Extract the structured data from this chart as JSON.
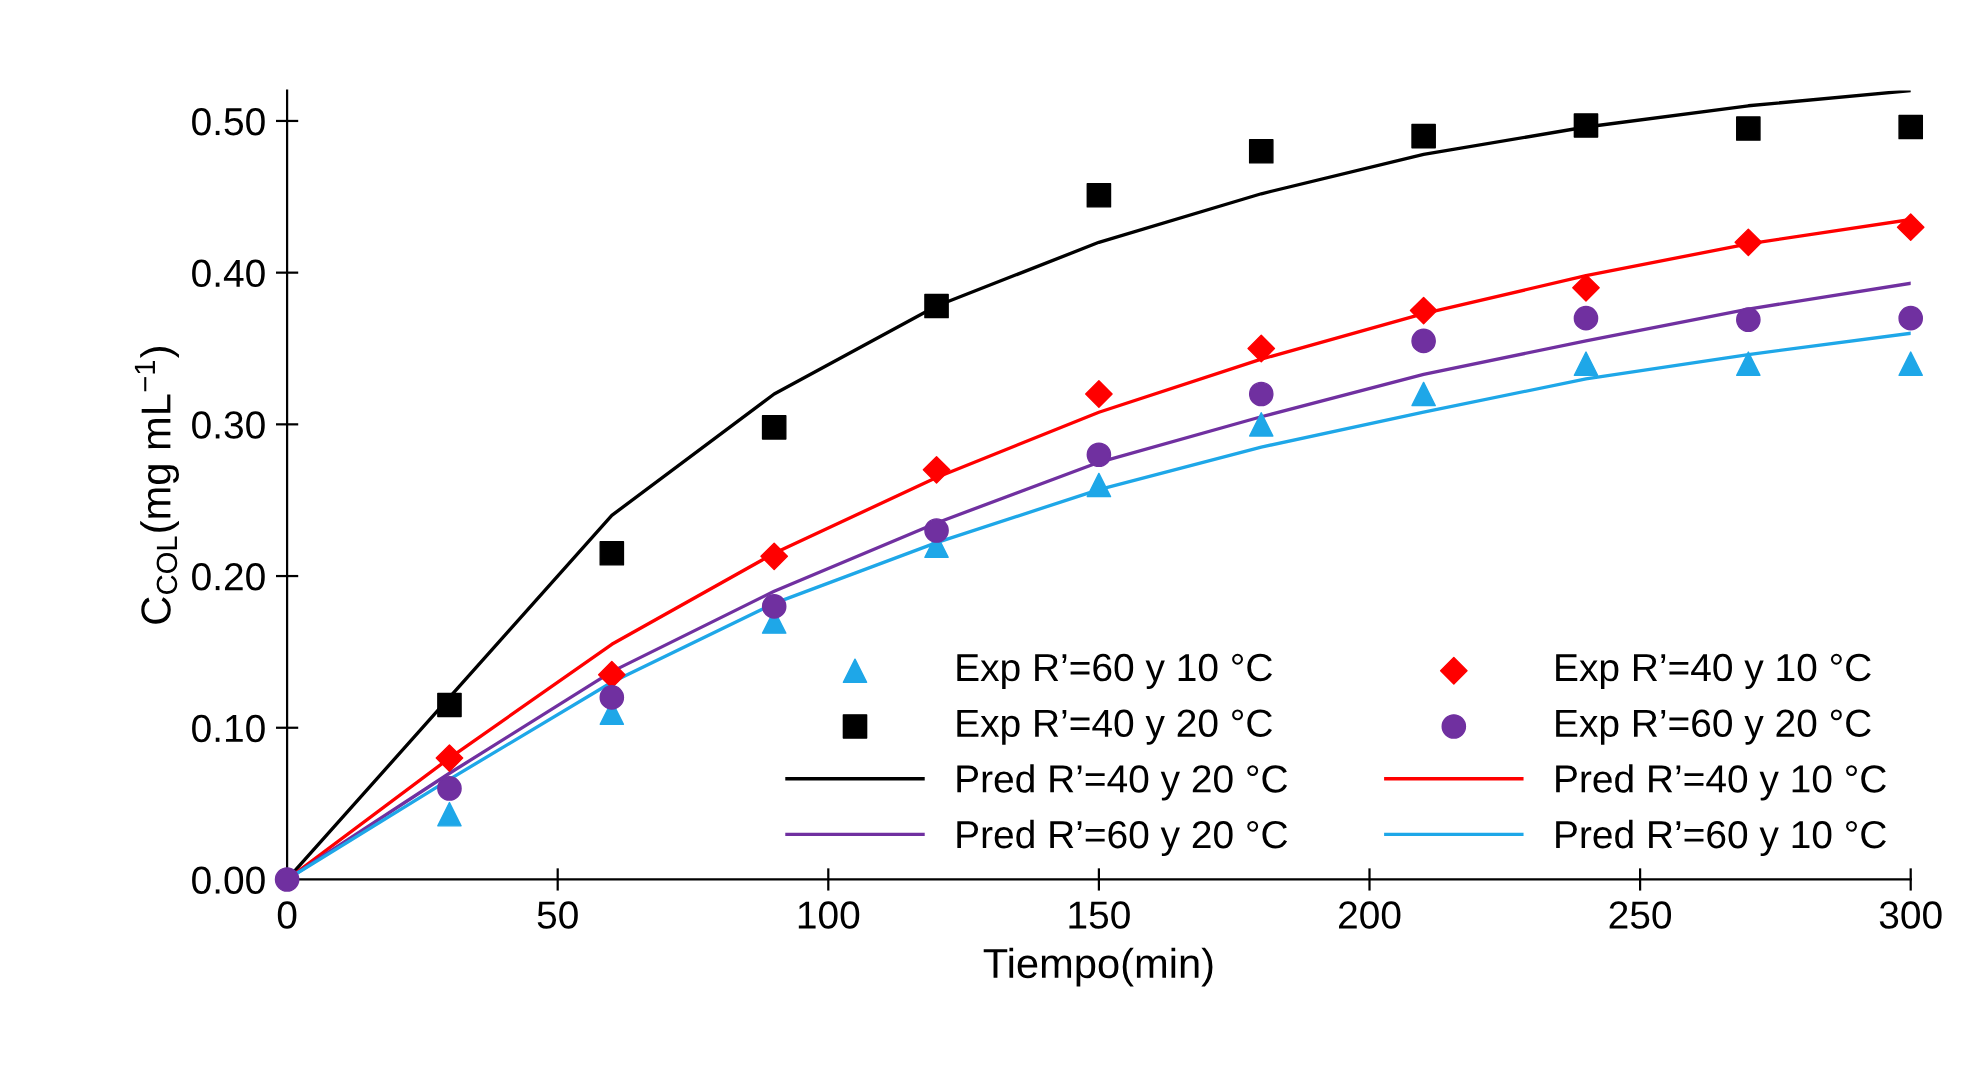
{
  "chart_data": {
    "type": "scatter",
    "xlabel": "Tiempo(min)",
    "ylabel": "C$_{COL}$(mg mL$^{−1}$)",
    "xlim": [
      0,
      300
    ],
    "ylim": [
      0,
      0.52
    ],
    "xticks": [
      0,
      50,
      100,
      150,
      200,
      250,
      300
    ],
    "yticks": [
      {
        "value": 0,
        "label": "0.00"
      },
      {
        "value": 0.1,
        "label": "0.10"
      },
      {
        "value": 0.2,
        "label": "0.20"
      },
      {
        "value": 0.3,
        "label": "0.30"
      },
      {
        "value": 0.4,
        "label": "0.40"
      },
      {
        "value": 0.5,
        "label": "0.50"
      }
    ],
    "grid": false,
    "legend": "bottom right",
    "x": [
      0,
      30,
      60,
      90,
      120,
      150,
      180,
      210,
      240,
      270,
      300
    ],
    "series": [
      {
        "name": "Exp R’=60 y 10 °C",
        "marker": "triangle",
        "color": "#1ea7e8",
        "values": [
          null,
          0.043,
          0.11,
          0.17,
          0.22,
          0.26,
          0.3,
          0.32,
          0.34,
          0.34,
          0.34
        ]
      },
      {
        "name": "Exp R’=40 y 10 °C",
        "marker": "diamond",
        "color": "#ff0000",
        "values": [
          null,
          0.08,
          0.135,
          0.213,
          0.27,
          0.32,
          0.35,
          0.375,
          0.39,
          0.42,
          0.43
        ]
      },
      {
        "name": "Exp R’=40 y 20 °C",
        "marker": "square",
        "color": "#000000",
        "values": [
          null,
          0.115,
          0.215,
          0.298,
          0.378,
          0.451,
          0.48,
          0.49,
          0.497,
          0.495,
          0.496
        ]
      },
      {
        "name": "Exp R’=60 y 20 °C",
        "marker": "circle",
        "color": "#7030a0",
        "values": [
          0,
          0.06,
          0.12,
          0.18,
          0.23,
          0.28,
          0.32,
          0.355,
          0.37,
          0.369,
          0.37
        ]
      },
      {
        "name": "Pred R’=40 y 20 °C",
        "type": "line",
        "marker": "none",
        "color": "#000000",
        "values": [
          0,
          0.12,
          0.24,
          0.32,
          0.378,
          0.42,
          0.452,
          0.478,
          0.496,
          0.51,
          0.52
        ]
      },
      {
        "name": "Pred R’=40 y 10 °C",
        "type": "line",
        "marker": "none",
        "color": "#ff0000",
        "values": [
          0,
          0.08,
          0.155,
          0.215,
          0.265,
          0.308,
          0.343,
          0.373,
          0.398,
          0.419,
          0.435
        ]
      },
      {
        "name": "Pred R’=60 y 20 °C",
        "type": "line",
        "marker": "none",
        "color": "#7030a0",
        "values": [
          0,
          0.07,
          0.137,
          0.19,
          0.235,
          0.275,
          0.305,
          0.333,
          0.355,
          0.376,
          0.393
        ]
      },
      {
        "name": "Pred R’=60 y 10 °C",
        "type": "line",
        "marker": "none",
        "color": "#1ea7e8",
        "values": [
          0,
          0.066,
          0.13,
          0.182,
          0.222,
          0.257,
          0.285,
          0.308,
          0.33,
          0.346,
          0.36
        ]
      }
    ]
  }
}
